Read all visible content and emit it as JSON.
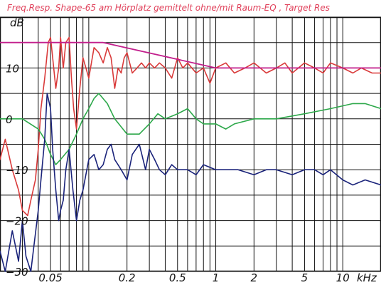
{
  "chart_data": {
    "type": "line",
    "title": "Freq.Resp. Shape-65 am Hörplatz gemittelt ohne/mit Raum-EQ , Target Res",
    "ylabel": "dB",
    "xlabel": "kHz",
    "x_scale": "log",
    "xlim": [
      0.02,
      20
    ],
    "ylim": [
      -30,
      20
    ],
    "grid": true,
    "legend": "none",
    "x_tick_labels": [
      {
        "value": 0.05,
        "label": "0.05"
      },
      {
        "value": 0.2,
        "label": "0.2"
      },
      {
        "value": 0.5,
        "label": "0.5"
      },
      {
        "value": 1,
        "label": "1"
      },
      {
        "value": 2,
        "label": "2"
      },
      {
        "value": 5,
        "label": "5"
      },
      {
        "value": 10,
        "label": "10"
      }
    ],
    "y_tick_labels": [
      {
        "value": 10,
        "label": "10"
      },
      {
        "value": 0,
        "label": "0"
      },
      {
        "value": -10,
        "label": "-10"
      },
      {
        "value": -20,
        "label": "-20"
      },
      {
        "value": -30,
        "label": "-30"
      }
    ],
    "series": [
      {
        "color": "#d93a3a",
        "x": [
          0.02,
          0.022,
          0.025,
          0.028,
          0.03,
          0.033,
          0.035,
          0.038,
          0.04,
          0.042,
          0.045,
          0.048,
          0.05,
          0.052,
          0.055,
          0.058,
          0.06,
          0.063,
          0.066,
          0.07,
          0.073,
          0.076,
          0.08,
          0.085,
          0.09,
          0.095,
          0.1,
          0.11,
          0.12,
          0.13,
          0.14,
          0.15,
          0.16,
          0.17,
          0.18,
          0.19,
          0.2,
          0.22,
          0.24,
          0.26,
          0.28,
          0.3,
          0.33,
          0.36,
          0.4,
          0.45,
          0.5,
          0.55,
          0.6,
          0.7,
          0.8,
          0.9,
          1.0,
          1.2,
          1.4,
          1.7,
          2.0,
          2.5,
          3.0,
          3.5,
          4.0,
          5.0,
          6.0,
          7.0,
          8.0,
          10.0,
          12.0,
          14.0,
          17.0,
          20.0
        ],
        "values": [
          -8,
          -4,
          -10,
          -14,
          -18,
          -19,
          -16,
          -12,
          -6,
          2,
          8,
          15,
          16,
          12,
          6,
          10,
          16,
          10,
          15,
          16,
          8,
          2,
          -2,
          6,
          12,
          10,
          8,
          14,
          13,
          11,
          14,
          12,
          6,
          10,
          9,
          12,
          13,
          9,
          10,
          11,
          10,
          11,
          10,
          11,
          10,
          8,
          12,
          10,
          11,
          9,
          10,
          7,
          10,
          11,
          9,
          10,
          11,
          9,
          10,
          11,
          9,
          11,
          10,
          9,
          11,
          10,
          9,
          10,
          9,
          9
        ]
      },
      {
        "color": "#c21f8c",
        "x": [
          0.02,
          0.1,
          0.13,
          1.0,
          2.0,
          20.0
        ],
        "values": [
          15,
          15,
          15,
          10,
          10,
          10
        ]
      },
      {
        "color": "#2da84a",
        "x": [
          0.02,
          0.03,
          0.04,
          0.045,
          0.05,
          0.055,
          0.06,
          0.07,
          0.08,
          0.09,
          0.1,
          0.11,
          0.12,
          0.14,
          0.16,
          0.2,
          0.25,
          0.3,
          0.35,
          0.4,
          0.5,
          0.6,
          0.7,
          0.8,
          1.0,
          1.2,
          1.4,
          2.0,
          3.0,
          5.0,
          8.0,
          12.0,
          15.0,
          20.0
        ],
        "values": [
          0,
          0,
          -2,
          -4,
          -7,
          -9,
          -8,
          -6,
          -3,
          0,
          2,
          4,
          5,
          3,
          0,
          -3,
          -3,
          -1,
          1,
          0,
          1,
          2,
          0,
          -1,
          -1,
          -2,
          -1,
          0,
          0,
          1,
          2,
          3,
          3,
          2
        ]
      },
      {
        "color": "#1a237a",
        "x": [
          0.02,
          0.022,
          0.025,
          0.028,
          0.03,
          0.032,
          0.035,
          0.037,
          0.04,
          0.042,
          0.045,
          0.047,
          0.05,
          0.052,
          0.055,
          0.058,
          0.06,
          0.063,
          0.066,
          0.07,
          0.075,
          0.08,
          0.085,
          0.09,
          0.1,
          0.11,
          0.12,
          0.13,
          0.14,
          0.15,
          0.16,
          0.18,
          0.2,
          0.22,
          0.25,
          0.28,
          0.3,
          0.33,
          0.36,
          0.4,
          0.45,
          0.5,
          0.6,
          0.7,
          0.8,
          1.0,
          1.2,
          1.5,
          2.0,
          2.5,
          3.0,
          4.0,
          5.0,
          6.0,
          7.0,
          8.0,
          10.0,
          12.0,
          15.0,
          20.0
        ],
        "values": [
          -26,
          -30,
          -22,
          -28,
          -20,
          -27,
          -30,
          -25,
          -18,
          -12,
          -4,
          5,
          2,
          -6,
          -14,
          -20,
          -18,
          -16,
          -10,
          -6,
          -14,
          -20,
          -16,
          -14,
          -8,
          -7,
          -10,
          -9,
          -6,
          -5,
          -8,
          -10,
          -12,
          -7,
          -5,
          -10,
          -6,
          -8,
          -10,
          -11,
          -9,
          -10,
          -10,
          -11,
          -9,
          -10,
          -10,
          -10,
          -11,
          -10,
          -10,
          -11,
          -10,
          -10,
          -11,
          -10,
          -12,
          -13,
          -12,
          -13
        ]
      }
    ]
  }
}
